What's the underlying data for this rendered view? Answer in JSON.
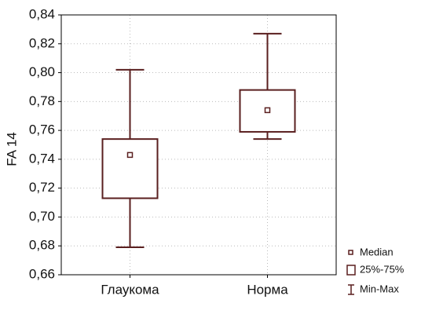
{
  "chart_data": {
    "type": "box",
    "y_label": "FA 14",
    "categories": [
      "Глаукома",
      "Норма"
    ],
    "min": [
      0.679,
      0.754
    ],
    "q1": [
      0.713,
      0.759
    ],
    "median": [
      0.743,
      0.774
    ],
    "q3": [
      0.754,
      0.788
    ],
    "max": [
      0.802,
      0.827
    ],
    "color": "#5a1f1f",
    "ylim": [
      0.66,
      0.84
    ],
    "yticks": [
      {
        "value": 0.66,
        "label": "0,66"
      },
      {
        "value": 0.68,
        "label": "0,68"
      },
      {
        "value": 0.7,
        "label": "0,70"
      },
      {
        "value": 0.72,
        "label": "0,72"
      },
      {
        "value": 0.74,
        "label": "0,74"
      },
      {
        "value": 0.76,
        "label": "0,76"
      },
      {
        "value": 0.78,
        "label": "0,78"
      },
      {
        "value": 0.8,
        "label": "0,80"
      },
      {
        "value": 0.82,
        "label": "0,82"
      },
      {
        "value": 0.84,
        "label": "0,84"
      }
    ],
    "grid": true,
    "legend": [
      "Median",
      "25%-75%",
      "Min-Max"
    ],
    "legend_position": "lower right"
  }
}
